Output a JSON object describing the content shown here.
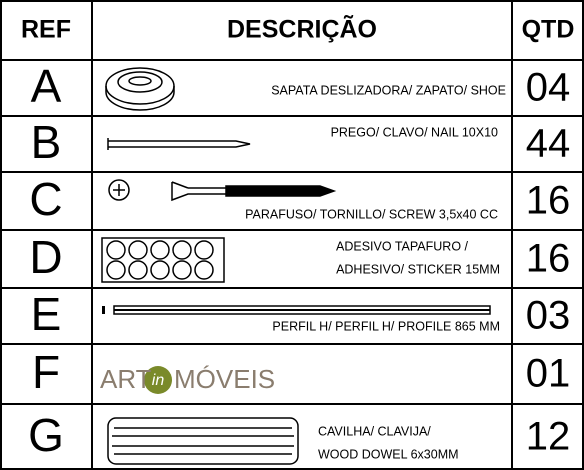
{
  "header": {
    "ref": "REF",
    "description": "DESCRIÇÃO",
    "qty": "QTD"
  },
  "rows": [
    {
      "ref": "A",
      "description": [
        "SAPATA DESLIZADORA/ ZAPATO/ SHOE"
      ],
      "qty": "04"
    },
    {
      "ref": "B",
      "description": [
        "PREGO/ CLAVO/ NAIL 10X10"
      ],
      "qty": "44"
    },
    {
      "ref": "C",
      "description": [
        "PARAFUSO/ TORNILLO/ SCREW 3,5x40 CC"
      ],
      "qty": "16"
    },
    {
      "ref": "D",
      "description": [
        "ADESIVO TAPAFURO /",
        "ADHESIVO/ STICKER 15MM"
      ],
      "qty": "16"
    },
    {
      "ref": "E",
      "description": [
        "PERFIL H/ PERFIL H/ PROFILE 865 MM"
      ],
      "qty": "03"
    },
    {
      "ref": "F",
      "logo": [
        "ART",
        "in",
        "MÓVEIS"
      ],
      "qty": "01"
    },
    {
      "ref": "G",
      "description": [
        "CAVILHA/ CLAVIJA/",
        "WOOD DOWEL 6x30MM"
      ],
      "qty": "12"
    }
  ]
}
